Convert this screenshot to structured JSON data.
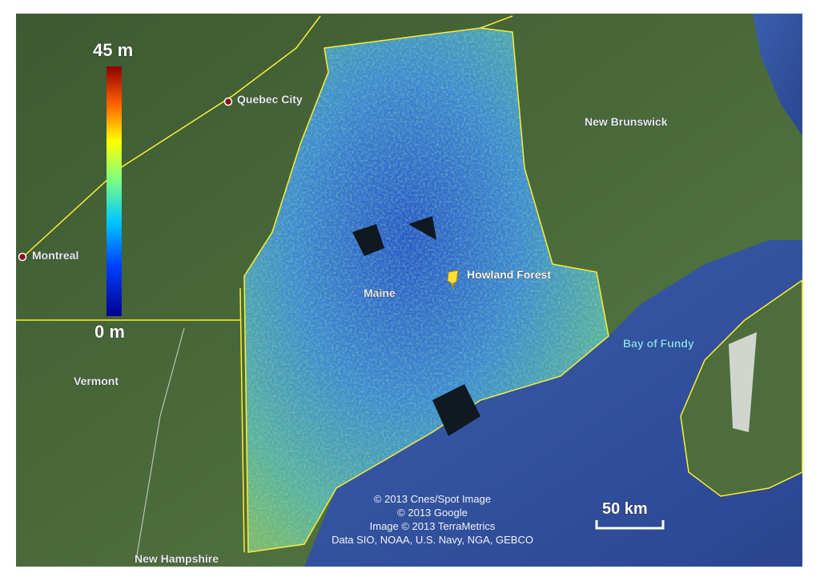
{
  "legend": {
    "max_label": "45 m",
    "min_label": "0 m"
  },
  "places": {
    "quebec_city": "Quebec City",
    "montreal": "Montreal",
    "new_brunswick": "New Brunswick",
    "maine": "Maine",
    "howland_forest": "Howland Forest",
    "bay_of_fundy": "Bay of Fundy",
    "vermont": "Vermont",
    "new_hampshire": "New Hampshire"
  },
  "attribution": [
    "© 2013 Cnes/Spot Image",
    "© 2013 Google",
    "Image © 2013 TerraMetrics",
    "Data SIO, NOAA, U.S. Navy, NGA, GEBCO"
  ],
  "scale_bar": {
    "label": "50 km"
  }
}
